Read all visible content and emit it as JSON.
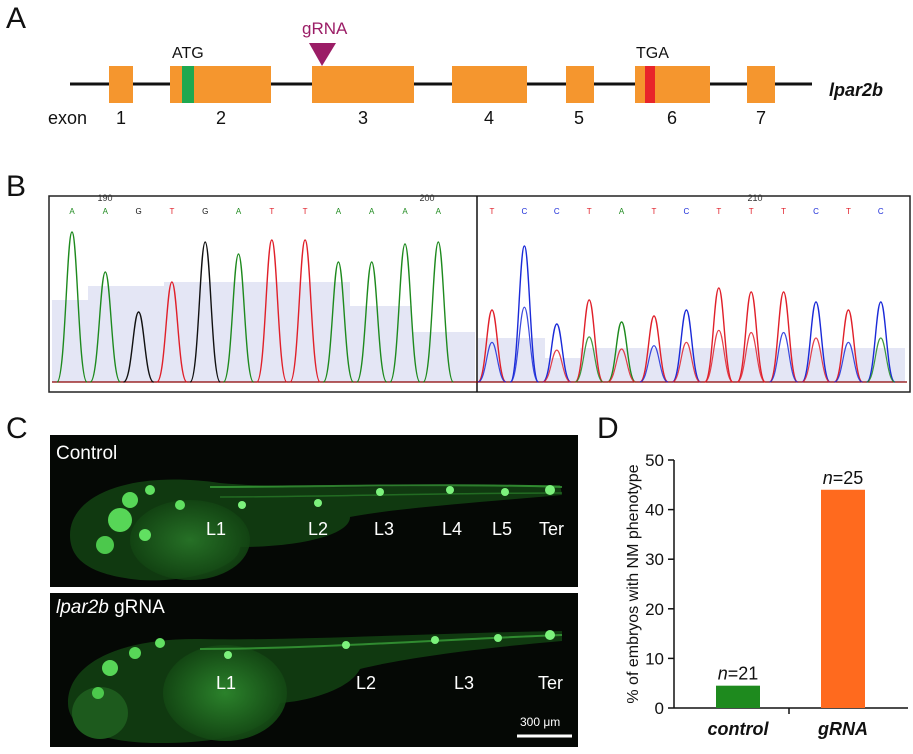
{
  "panels": {
    "a": "A",
    "b": "B",
    "c": "C",
    "d": "D"
  },
  "gene_diagram": {
    "gene_name": "lpar2b",
    "exon_label": "exon",
    "exon_numbers": [
      "1",
      "2",
      "3",
      "4",
      "5",
      "6",
      "7"
    ],
    "start_codon": "ATG",
    "stop_codon": "TGA",
    "grna_label": "gRNA",
    "colors": {
      "exon": "#F5962E",
      "atg": "#1FA84F",
      "tga": "#E8252A",
      "grna": "#9B1D66",
      "intron": "#111111"
    }
  },
  "chromatogram": {
    "position_labels": [
      "190",
      "200",
      "210"
    ],
    "bases_left": [
      "A",
      "A",
      "G",
      "T",
      "G",
      "A",
      "T",
      "T",
      "A",
      "A",
      "A",
      "A"
    ],
    "bases_right": [
      "T",
      "C",
      "C",
      "T",
      "A",
      "T",
      "C",
      "T",
      "T",
      "T",
      "C",
      "T",
      "C"
    ],
    "base_colors": {
      "A": "#1E8A1E",
      "C": "#1A2AD8",
      "G": "#111111",
      "T": "#E0202A"
    }
  },
  "microscopy": {
    "top_caption": "Control",
    "bottom_caption_italic": "lpar2b",
    "bottom_caption_rest": " gRNA",
    "top_markers": [
      "L1",
      "L2",
      "L3",
      "L4",
      "L5",
      "Ter"
    ],
    "bottom_markers": [
      "L1",
      "L2",
      "L3",
      "Ter"
    ],
    "scale_bar": "300 μm"
  },
  "chart_data": {
    "type": "bar",
    "categories": [
      "control",
      "gRNA"
    ],
    "values": [
      4.5,
      44
    ],
    "annotations": [
      "n=21",
      "n=25"
    ],
    "ylabel": "% of embryos with NM phenotype",
    "ylim": [
      0,
      50
    ],
    "yticks": [
      "0",
      "10",
      "20",
      "30",
      "40",
      "50"
    ],
    "colors": [
      "#1E8A1E",
      "#FF6A1E"
    ],
    "grid": false
  }
}
